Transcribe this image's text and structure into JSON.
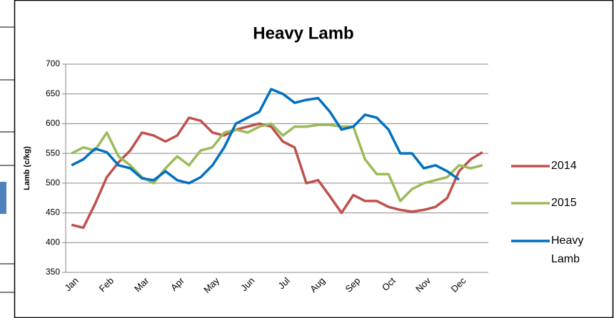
{
  "chart_data": {
    "type": "line",
    "title": "Heavy Lamb",
    "y_label": "Lamb (c/kg)",
    "categories": [
      "Jan",
      null,
      null,
      "Feb",
      null,
      null,
      "Mar",
      null,
      null,
      "Apr",
      null,
      null,
      "May",
      null,
      null,
      "Jun",
      null,
      null,
      "Jul",
      null,
      null,
      "Aug",
      null,
      null,
      "Sep",
      null,
      null,
      "Oct",
      null,
      null,
      "Nov",
      null,
      null,
      "Dec",
      null,
      null
    ],
    "series": [
      {
        "name": "2014",
        "color": "#c0504d",
        "values": [
          430,
          425,
          465,
          510,
          535,
          555,
          585,
          580,
          570,
          580,
          610,
          605,
          585,
          580,
          590,
          595,
          600,
          595,
          570,
          560,
          500,
          505,
          478,
          450,
          480,
          470,
          470,
          460,
          455,
          452,
          455,
          460,
          475,
          520,
          540,
          552
        ]
      },
      {
        "name": "2015",
        "color": "#9bbb59",
        "values": [
          550,
          560,
          555,
          585,
          545,
          530,
          510,
          500,
          525,
          545,
          530,
          555,
          560,
          585,
          590,
          585,
          595,
          600,
          580,
          595,
          595,
          598,
          598,
          595,
          595,
          540,
          515,
          515,
          470,
          490,
          500,
          505,
          510,
          530,
          525,
          530
        ]
      },
      {
        "name": "Heavy Lamb",
        "color": "#0070c0",
        "values": [
          530,
          540,
          558,
          552,
          530,
          525,
          508,
          505,
          520,
          505,
          500,
          510,
          530,
          560,
          600,
          610,
          620,
          658,
          650,
          635,
          640,
          643,
          620,
          590,
          595,
          615,
          610,
          590,
          550,
          550,
          525,
          530,
          520,
          506,
          null,
          null
        ]
      }
    ],
    "ylim": [
      350,
      700
    ],
    "yticks": [
      350,
      400,
      450,
      500,
      550,
      600,
      650,
      700
    ],
    "grid": true,
    "legend": "right"
  }
}
